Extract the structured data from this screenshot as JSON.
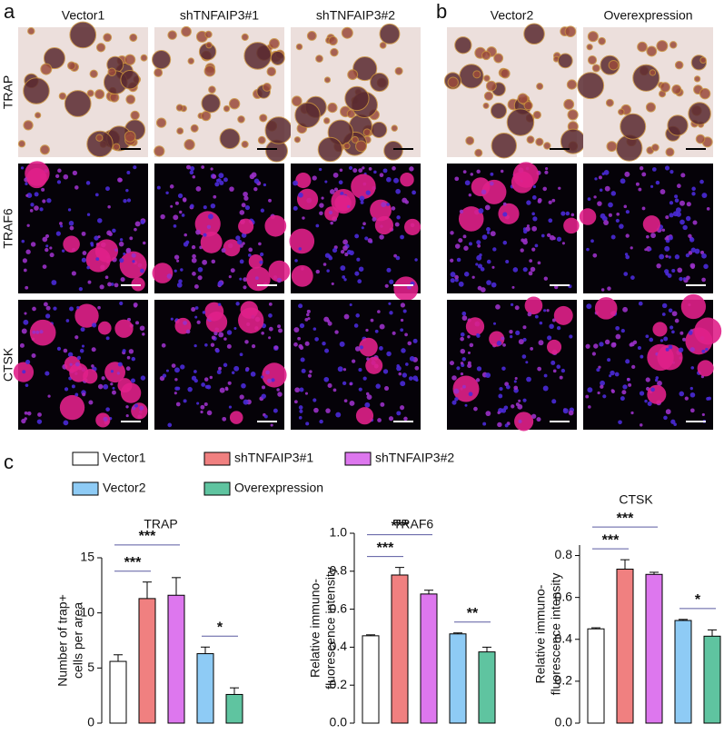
{
  "panels": [
    {
      "label": "a",
      "columns": [
        "Vector1",
        "shTNFAIP3#1",
        "shTNFAIP3#2"
      ]
    },
    {
      "label": "b",
      "columns": [
        "Vector2",
        "Overexpression"
      ]
    }
  ],
  "rows": [
    "TRAP",
    "TRAF6",
    "CTSK"
  ],
  "panel_c_label": "c",
  "legend": [
    {
      "name": "Vector1",
      "color": "#ffffff"
    },
    {
      "name": "shTNFAIP3#1",
      "color": "#f08080"
    },
    {
      "name": "shTNFAIP3#2",
      "color": "#dd77ee"
    },
    {
      "name": "Vector2",
      "color": "#8ecbf5"
    },
    {
      "name": "Overexpression",
      "color": "#5fc4a0"
    }
  ],
  "chart_data": [
    {
      "type": "bar",
      "title": "TRAP",
      "ylabel": [
        "Number of trap+",
        "cells per area"
      ],
      "values": [
        5.6,
        11.3,
        11.6,
        6.3,
        2.6
      ],
      "errors": [
        0.6,
        1.5,
        1.6,
        0.6,
        0.6
      ],
      "ylim": [
        0,
        15
      ],
      "yticks": [
        0,
        5,
        10,
        15
      ],
      "annotations": [
        {
          "text": "***",
          "between": [
            0,
            1
          ]
        },
        {
          "text": "***",
          "between": [
            0,
            2
          ]
        },
        {
          "text": "*",
          "between": [
            3,
            4
          ]
        }
      ]
    },
    {
      "type": "bar",
      "title": "TRAF6",
      "ylabel": [
        "Relative immuno-",
        "fluorescence intensity"
      ],
      "values": [
        0.46,
        0.78,
        0.68,
        0.47,
        0.375
      ],
      "errors": [
        0.005,
        0.04,
        0.02,
        0.005,
        0.025
      ],
      "ylim": [
        0,
        1.0
      ],
      "yticks": [
        {
          "value": 0,
          "label": "0.0"
        },
        0.2,
        0.4,
        0.6,
        0.8,
        {
          "value": 1.0,
          "label": "1.0"
        }
      ],
      "annotations": [
        {
          "text": "***",
          "between": [
            0,
            1
          ]
        },
        {
          "text": "***",
          "between": [
            0,
            2
          ]
        },
        {
          "text": "**",
          "between": [
            3,
            4
          ]
        }
      ]
    },
    {
      "type": "bar",
      "title": "CTSK",
      "ylabel": [
        "Relative immuno-",
        "fluorescence intensity"
      ],
      "values": [
        0.45,
        0.735,
        0.71,
        0.49,
        0.415
      ],
      "errors": [
        0.005,
        0.045,
        0.01,
        0.005,
        0.03
      ],
      "ylim": [
        0,
        0.85
      ],
      "yticks": [
        {
          "value": 0,
          "label": "0.0"
        },
        0.2,
        0.4,
        0.6,
        0.8
      ],
      "annotations": [
        {
          "text": "***",
          "between": [
            0,
            1
          ]
        },
        {
          "text": "***",
          "between": [
            0,
            2
          ]
        },
        {
          "text": "*",
          "between": [
            3,
            4
          ]
        }
      ]
    }
  ]
}
